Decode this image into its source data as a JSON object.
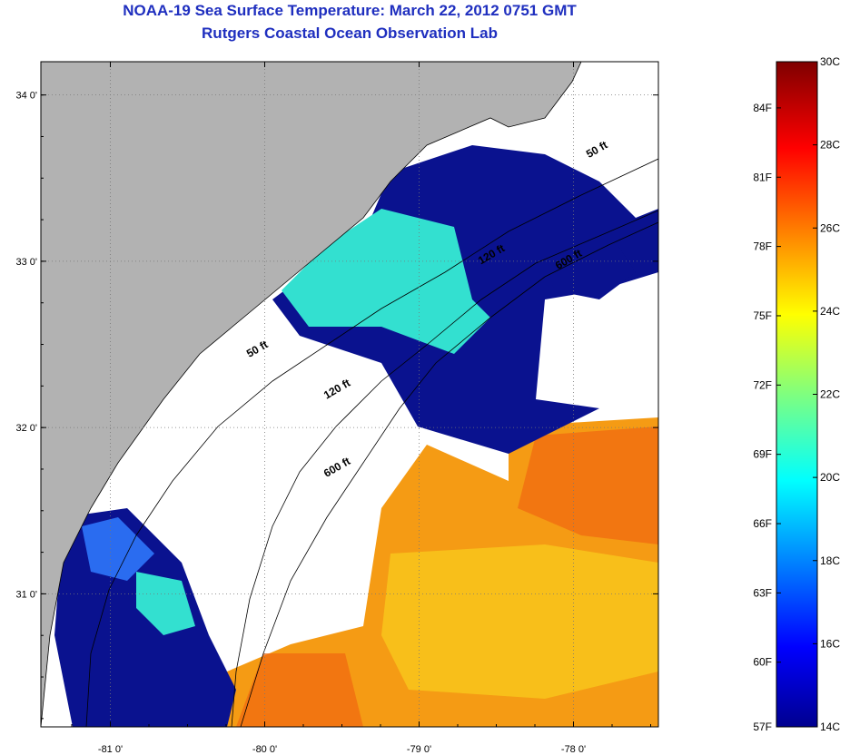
{
  "title": "NOAA-19 Sea Surface Temperature:  March 22, 2012 0751 GMT",
  "subtitle": "Rutgers Coastal Ocean Observation Lab",
  "map": {
    "lon_range": [
      -81.45,
      -77.45
    ],
    "lat_range": [
      30.2,
      34.2
    ],
    "lat_ticks": [
      {
        "value": 34,
        "label": "34 0'"
      },
      {
        "value": 33,
        "label": "33 0'"
      },
      {
        "value": 32,
        "label": "32 0'"
      },
      {
        "value": 31,
        "label": "31 0'"
      }
    ],
    "lon_ticks": [
      {
        "value": -81,
        "label": "-81 0'"
      },
      {
        "value": -80,
        "label": "-80 0'"
      },
      {
        "value": -79,
        "label": "-79 0'"
      },
      {
        "value": -78,
        "label": "-78 0'"
      }
    ],
    "isobaths": [
      {
        "label": "50 ft",
        "lon": -77.9,
        "lat": 33.62
      },
      {
        "label": "120 ft",
        "lon": -78.6,
        "lat": 32.98
      },
      {
        "label": "600 ft",
        "lon": -78.1,
        "lat": 32.95
      },
      {
        "label": "50 ft",
        "lon": -80.1,
        "lat": 32.42
      },
      {
        "label": "120 ft",
        "lon": -79.6,
        "lat": 32.17
      },
      {
        "label": "600 ft",
        "lon": -79.6,
        "lat": 31.7
      }
    ],
    "colors": {
      "land": "#b2b2b2",
      "cloud": "#ffffff",
      "grid": "#777777"
    }
  },
  "colorbar": {
    "min_c": 14,
    "max_c": 30,
    "celsius_ticks": [
      "30C",
      "28C",
      "26C",
      "24C",
      "22C",
      "20C",
      "18C",
      "16C",
      "14C"
    ],
    "fahrenheit_ticks": [
      "84F",
      "81F",
      "78F",
      "75F",
      "72F",
      "69F",
      "66F",
      "63F",
      "60F",
      "57F"
    ]
  }
}
